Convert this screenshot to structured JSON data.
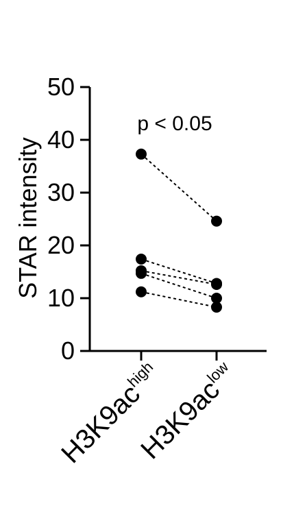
{
  "chart_data": {
    "type": "scatter",
    "ylabel": "STAR intensity",
    "ylim": [
      0,
      50
    ],
    "yticks": [
      0,
      10,
      20,
      30,
      40,
      50
    ],
    "categories": [
      {
        "base": "H3K9ac",
        "sup": "high"
      },
      {
        "base": "H3K9ac",
        "sup": "low"
      }
    ],
    "pairs": [
      [
        37.3,
        24.6
      ],
      [
        17.4,
        12.8
      ],
      [
        15.2,
        12.6
      ],
      [
        14.7,
        10.0
      ],
      [
        11.2,
        8.3
      ]
    ],
    "annotation": "p < 0.05",
    "grid": false,
    "colors": {
      "marker": "#000000",
      "line": "#000000"
    }
  }
}
